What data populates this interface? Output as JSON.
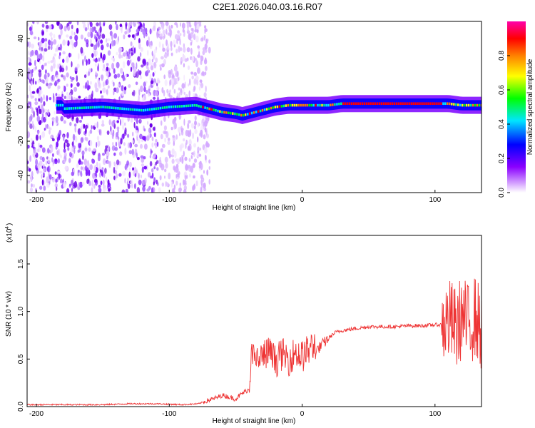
{
  "title": "C2E1.2026.040.03.16.R07",
  "chart_data": [
    {
      "type": "heatmap",
      "xlabel": "Height of straight line (km)",
      "ylabel": "Frequency (Hz)",
      "xlim": [
        -207,
        135
      ],
      "ylim": [
        -50,
        50
      ],
      "x_ticks": [
        -200,
        -100,
        0,
        100
      ],
      "y_ticks": [
        -40,
        -20,
        0,
        20,
        40
      ],
      "colorbar": {
        "label": "Normalized spectral amplitude",
        "range": [
          0,
          1
        ],
        "ticks": [
          0.0,
          0.2,
          0.4,
          0.6,
          0.8
        ],
        "colors": [
          "#f2dcff",
          "#7a00ff",
          "#0000ff",
          "#00e0ff",
          "#00ff00",
          "#ffff00",
          "#ff8000",
          "#ff0000",
          "#ff00aa"
        ]
      },
      "noise_region_x": [
        -207,
        -75
      ],
      "ridge": {
        "x": [
          -180,
          -150,
          -120,
          -100,
          -80,
          -70,
          -60,
          -50,
          -45,
          -40,
          -30,
          -20,
          -10,
          0,
          10,
          20,
          30,
          60,
          100,
          110,
          120,
          135
        ],
        "frequency": [
          -1,
          0,
          -2,
          0,
          1,
          -1,
          -3,
          -4,
          -5,
          -4,
          -2,
          0,
          1,
          1,
          1,
          1,
          2,
          2,
          2,
          2,
          1,
          1
        ]
      }
    },
    {
      "type": "line",
      "xlabel": "Height of straight line (km)",
      "ylabel": "SNR (10 * v/v)",
      "scale_label": "(x10",
      "scale_exp": "4",
      "xlim": [
        -207,
        135
      ],
      "ylim": [
        0,
        1.8
      ],
      "x_ticks": [
        -200,
        -100,
        0,
        100
      ],
      "y_ticks": [
        0.0,
        0.5,
        1.0,
        1.5
      ],
      "color": "#ee3333",
      "x": [
        -207,
        -190,
        -170,
        -150,
        -130,
        -110,
        -90,
        -78,
        -72,
        -65,
        -60,
        -55,
        -50,
        -45,
        -40,
        -38,
        -35,
        -30,
        -25,
        -20,
        -15,
        -10,
        -5,
        0,
        5,
        10,
        15,
        20,
        25,
        30,
        40,
        50,
        60,
        70,
        80,
        90,
        100,
        105,
        108,
        112,
        116,
        120,
        125,
        130,
        135
      ],
      "values": [
        0.02,
        0.02,
        0.02,
        0.02,
        0.03,
        0.03,
        0.02,
        0.03,
        0.06,
        0.09,
        0.12,
        0.1,
        0.08,
        0.14,
        0.18,
        0.45,
        0.4,
        0.45,
        0.5,
        0.4,
        0.48,
        0.42,
        0.5,
        0.45,
        0.52,
        0.58,
        0.65,
        0.72,
        0.78,
        0.8,
        0.82,
        0.84,
        0.84,
        0.84,
        0.85,
        0.85,
        0.86,
        0.86,
        0.88,
        0.9,
        0.8,
        0.95,
        0.85,
        0.95,
        0.8
      ]
    }
  ]
}
